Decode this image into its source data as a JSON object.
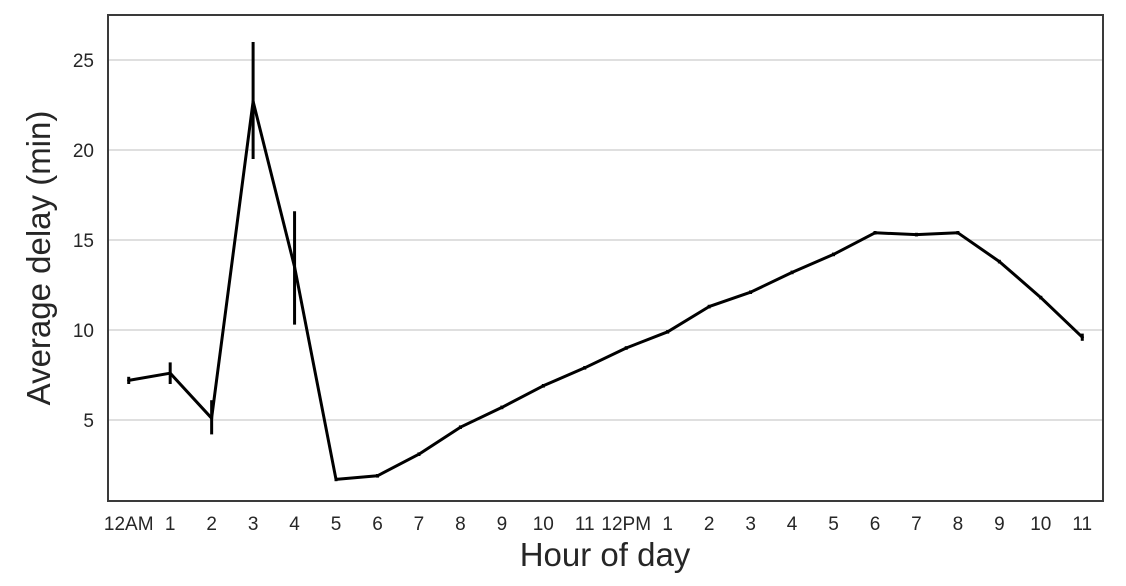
{
  "chart_data": {
    "type": "line",
    "xlabel": "Hour of day",
    "ylabel": "Average delay (min)",
    "x_tick_labels": [
      "12AM",
      "1",
      "2",
      "3",
      "4",
      "5",
      "6",
      "7",
      "8",
      "9",
      "10",
      "11",
      "12PM",
      "1",
      "2",
      "3",
      "4",
      "5",
      "6",
      "7",
      "8",
      "9",
      "10",
      "11"
    ],
    "y_ticks": [
      5,
      10,
      15,
      20,
      25
    ],
    "xlim": [
      -0.5,
      23.5
    ],
    "ylim": [
      0.5,
      27.5
    ],
    "grid": "horizontal",
    "legend": "none",
    "colors": {
      "line": "#000000",
      "grid": "#cccccc",
      "frame": "#3a3a3a",
      "text": "#262626"
    },
    "series": [
      {
        "x": [
          0,
          1,
          2,
          3,
          4,
          5,
          6,
          7,
          8,
          9,
          10,
          11,
          12,
          13,
          14,
          15,
          16,
          17,
          18,
          19,
          20,
          21,
          22,
          23
        ],
        "values": [
          7.2,
          7.6,
          5.1,
          22.7,
          13.5,
          1.7,
          1.9,
          3.1,
          4.6,
          5.7,
          6.9,
          7.9,
          9.0,
          9.9,
          11.3,
          12.1,
          13.2,
          14.2,
          15.4,
          15.3,
          15.4,
          13.8,
          11.8,
          9.6
        ],
        "error_low": [
          7.0,
          7.0,
          4.2,
          19.5,
          10.3,
          1.6,
          1.8,
          3.0,
          4.5,
          5.6,
          6.8,
          7.8,
          8.9,
          9.8,
          11.2,
          12.0,
          13.1,
          14.1,
          15.3,
          15.2,
          15.3,
          13.7,
          11.7,
          9.4
        ],
        "error_high": [
          7.4,
          8.2,
          6.1,
          26.0,
          16.6,
          1.8,
          2.0,
          3.2,
          4.7,
          5.8,
          7.0,
          8.0,
          9.1,
          10.0,
          11.4,
          12.2,
          13.3,
          14.3,
          15.5,
          15.4,
          15.5,
          13.9,
          11.9,
          9.8
        ]
      }
    ]
  }
}
